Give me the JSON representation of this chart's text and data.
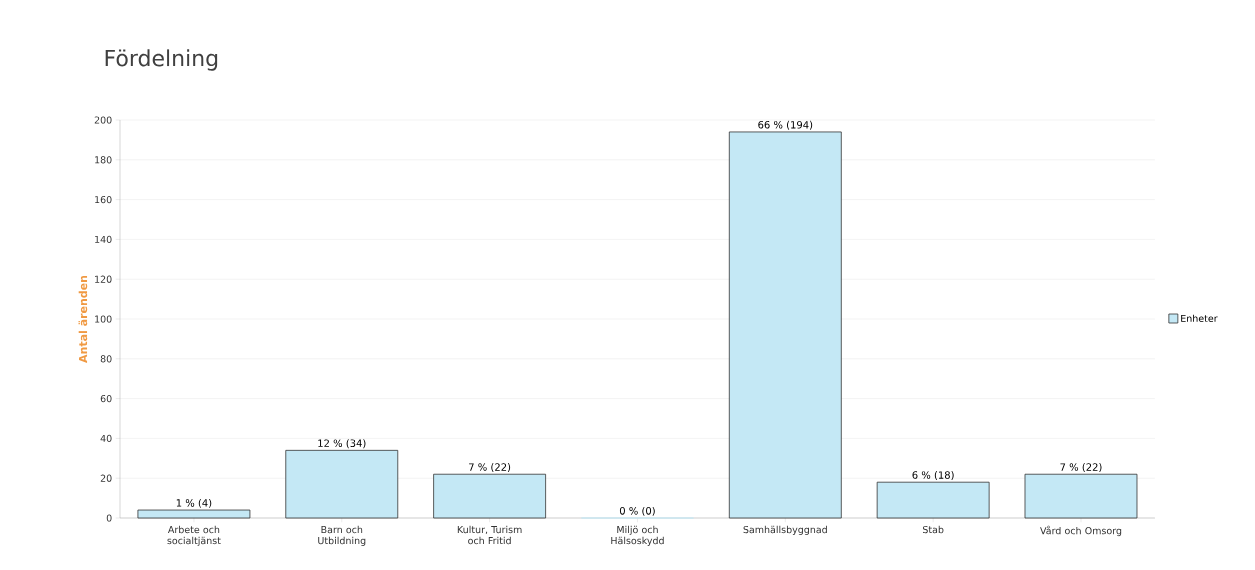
{
  "chart_data": {
    "type": "bar",
    "title": "Fördelning",
    "ylabel": "Antal ärenden",
    "categories": [
      "Arbete och socialtjänst",
      "Barn och Utbildning",
      "Kultur, Turism och Fritid",
      "Miljö och Hälsoskydd",
      "Samhällsbyggnad",
      "Stab",
      "Vård och Omsorg"
    ],
    "series": [
      {
        "name": "Enheter",
        "color": "#c4e8f5",
        "values": [
          4,
          34,
          22,
          0,
          194,
          18,
          22
        ],
        "value_labels": [
          "1 % (4)",
          "12 % (34)",
          "7 % (22)",
          "0 % (0)",
          "66 % (194)",
          "6 % (18)",
          "7 % (22)"
        ]
      }
    ],
    "ylim": [
      0,
      200
    ],
    "yticks": [
      0,
      20,
      40,
      60,
      80,
      100,
      120,
      140,
      160,
      180,
      200
    ],
    "grid": "y",
    "legend": "right"
  }
}
